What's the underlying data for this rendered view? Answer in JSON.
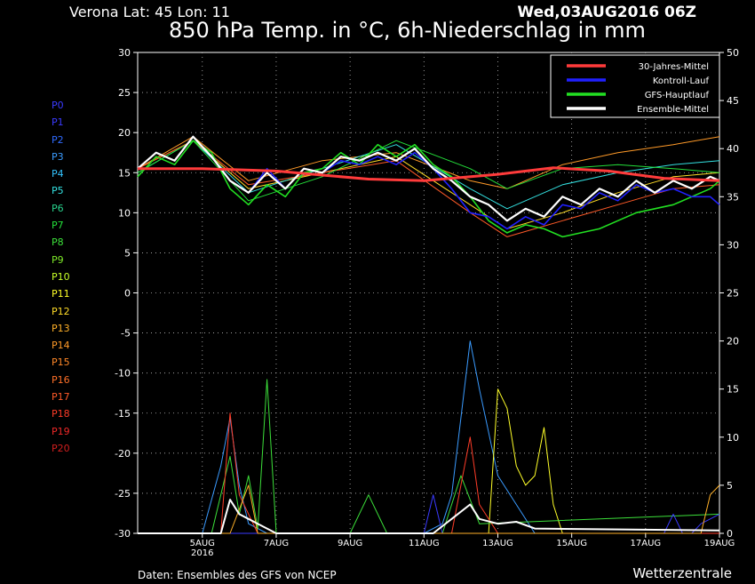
{
  "header": {
    "station": "Verona   Lat: 45 Lon: 11",
    "run": "Wed,03AUG2016 06Z",
    "title": "850 hPa Temp. in °C, 6h-Niederschlag in mm"
  },
  "footer": {
    "source": "Daten: Ensembles des GFS von NCEP",
    "brand": "Wetterzentrale"
  },
  "members": [
    {
      "label": "P0",
      "color": "#3a3aff"
    },
    {
      "label": "P1",
      "color": "#3a3aff"
    },
    {
      "label": "P2",
      "color": "#2f6bff"
    },
    {
      "label": "P3",
      "color": "#3a9bff"
    },
    {
      "label": "P4",
      "color": "#33c3ff"
    },
    {
      "label": "P5",
      "color": "#33e0e0"
    },
    {
      "label": "P6",
      "color": "#28d28c"
    },
    {
      "label": "P7",
      "color": "#24e03a"
    },
    {
      "label": "P8",
      "color": "#3ce03a"
    },
    {
      "label": "P9",
      "color": "#7ce828"
    },
    {
      "label": "P10",
      "color": "#c8ff28"
    },
    {
      "label": "P11",
      "color": "#ffff28"
    },
    {
      "label": "P12",
      "color": "#ffdc28"
    },
    {
      "label": "P13",
      "color": "#ffb028"
    },
    {
      "label": "P14",
      "color": "#ff9a28"
    },
    {
      "label": "P15",
      "color": "#ff8828"
    },
    {
      "label": "P16",
      "color": "#ff7028"
    },
    {
      "label": "P17",
      "color": "#ff5a28"
    },
    {
      "label": "P18",
      "color": "#ff3c28"
    },
    {
      "label": "P19",
      "color": "#f02828"
    },
    {
      "label": "P20",
      "color": "#d21e1e"
    }
  ],
  "chart_data": {
    "type": "line",
    "x_range": [
      "2016-08-03 06Z",
      "2016-08-19 00Z"
    ],
    "x_ticks": [
      {
        "label": "5AUG",
        "sub": "2016",
        "time": "2016-08-05 00Z"
      },
      {
        "label": "7AUG",
        "sub": "",
        "time": "2016-08-07 00Z"
      },
      {
        "label": "9AUG",
        "sub": "",
        "time": "2016-08-09 00Z"
      },
      {
        "label": "11AUG",
        "sub": "",
        "time": "2016-08-11 00Z"
      },
      {
        "label": "13AUG",
        "sub": "",
        "time": "2016-08-13 00Z"
      },
      {
        "label": "15AUG",
        "sub": "",
        "time": "2016-08-15 00Z"
      },
      {
        "label": "17AUG",
        "sub": "",
        "time": "2016-08-17 00Z"
      },
      {
        "label": "19AUG",
        "sub": "",
        "time": "2016-08-19 00Z"
      }
    ],
    "y_left": {
      "min": -30,
      "max": 30,
      "ticks": [
        30,
        25,
        20,
        15,
        10,
        5,
        0,
        -5,
        -10,
        -15,
        -20,
        -25,
        -30
      ]
    },
    "y_right": {
      "min": 0,
      "max": 50,
      "ticks": [
        50,
        45,
        40,
        35,
        30,
        25,
        20,
        15,
        10,
        5,
        0
      ]
    },
    "grid": true,
    "legend_position": "top-right",
    "legend": [
      {
        "label": "30-Jahres-Mittel",
        "color": "#ff3b3b"
      },
      {
        "label": "Kontroll-Lauf",
        "color": "#2020ff"
      },
      {
        "label": "GFS-Hauptlauf",
        "color": "#22e022"
      },
      {
        "label": "Ensemble-Mittel",
        "color": "#ffffff"
      }
    ],
    "temperature_series": [
      {
        "name": "30-Jahres-Mittel",
        "color": "#ff3b3b",
        "x": [
          "2016-08-03 06Z",
          "2016-08-05 00Z",
          "2016-08-07 00Z",
          "2016-08-08 06Z",
          "2016-08-09 12Z",
          "2016-08-11 00Z",
          "2016-08-13 00Z",
          "2016-08-14 12Z",
          "2016-08-16 00Z",
          "2016-08-17 12Z",
          "2016-08-19 00Z"
        ],
        "y": [
          15.5,
          15.5,
          15.2,
          14.7,
          14.2,
          14.0,
          14.8,
          15.6,
          15.2,
          14.3,
          14.0
        ]
      },
      {
        "name": "Ensemble-Mittel",
        "color": "#ffffff",
        "x": [
          "2016-08-03 06Z",
          "2016-08-03 18Z",
          "2016-08-04 06Z",
          "2016-08-04 18Z",
          "2016-08-05 06Z",
          "2016-08-05 18Z",
          "2016-08-06 06Z",
          "2016-08-06 18Z",
          "2016-08-07 06Z",
          "2016-08-07 18Z",
          "2016-08-08 06Z",
          "2016-08-08 18Z",
          "2016-08-09 06Z",
          "2016-08-09 18Z",
          "2016-08-10 06Z",
          "2016-08-10 18Z",
          "2016-08-11 06Z",
          "2016-08-11 18Z",
          "2016-08-12 06Z",
          "2016-08-12 18Z",
          "2016-08-13 06Z",
          "2016-08-13 18Z",
          "2016-08-14 06Z",
          "2016-08-14 18Z",
          "2016-08-15 06Z",
          "2016-08-15 18Z",
          "2016-08-16 06Z",
          "2016-08-16 18Z",
          "2016-08-17 06Z",
          "2016-08-17 18Z",
          "2016-08-18 06Z",
          "2016-08-18 18Z",
          "2016-08-19 00Z"
        ],
        "y": [
          15.5,
          17.5,
          16.5,
          19.5,
          17.0,
          14.0,
          12.5,
          15.0,
          13.0,
          15.5,
          15.0,
          17.0,
          16.5,
          17.5,
          16.5,
          18.0,
          15.5,
          14.0,
          12.0,
          11.0,
          9.0,
          10.5,
          9.5,
          12.0,
          11.0,
          13.0,
          12.0,
          14.0,
          12.5,
          14.0,
          13.0,
          14.5,
          14.0
        ]
      },
      {
        "name": "GFS-Hauptlauf",
        "color": "#22e022",
        "x": [
          "2016-08-03 06Z",
          "2016-08-03 18Z",
          "2016-08-04 06Z",
          "2016-08-04 18Z",
          "2016-08-05 06Z",
          "2016-08-05 18Z",
          "2016-08-06 06Z",
          "2016-08-06 18Z",
          "2016-08-07 06Z",
          "2016-08-07 18Z",
          "2016-08-08 06Z",
          "2016-08-08 18Z",
          "2016-08-09 06Z",
          "2016-08-09 18Z",
          "2016-08-10 06Z",
          "2016-08-10 18Z",
          "2016-08-11 06Z",
          "2016-08-11 18Z",
          "2016-08-12 06Z",
          "2016-08-12 18Z",
          "2016-08-13 06Z",
          "2016-08-13 18Z",
          "2016-08-14 06Z",
          "2016-08-14 18Z",
          "2016-08-15 06Z",
          "2016-08-15 18Z",
          "2016-08-16 06Z",
          "2016-08-16 18Z",
          "2016-08-17 06Z",
          "2016-08-17 18Z",
          "2016-08-18 06Z",
          "2016-08-18 18Z",
          "2016-08-19 00Z"
        ],
        "y": [
          14.5,
          17.0,
          16.0,
          19.0,
          17.5,
          13.0,
          11.0,
          13.5,
          12.0,
          15.0,
          15.5,
          17.5,
          16.0,
          18.5,
          17.0,
          18.5,
          16.0,
          14.5,
          12.0,
          9.0,
          7.5,
          8.5,
          8.0,
          7.0,
          7.5,
          8.0,
          9.0,
          10.0,
          10.5,
          11.0,
          12.0,
          13.0,
          14.0
        ]
      },
      {
        "name": "Kontroll-Lauf",
        "color": "#2020ff",
        "x": [
          "2016-08-03 06Z",
          "2016-08-03 18Z",
          "2016-08-04 06Z",
          "2016-08-04 18Z",
          "2016-08-05 06Z",
          "2016-08-05 18Z",
          "2016-08-06 06Z",
          "2016-08-06 18Z",
          "2016-08-07 06Z",
          "2016-08-07 18Z",
          "2016-08-08 06Z",
          "2016-08-08 18Z",
          "2016-08-09 06Z",
          "2016-08-09 18Z",
          "2016-08-10 06Z",
          "2016-08-10 18Z",
          "2016-08-11 06Z",
          "2016-08-11 18Z",
          "2016-08-12 06Z",
          "2016-08-12 18Z",
          "2016-08-13 06Z",
          "2016-08-13 18Z",
          "2016-08-14 06Z",
          "2016-08-14 18Z",
          "2016-08-15 06Z",
          "2016-08-15 18Z",
          "2016-08-16 06Z",
          "2016-08-16 18Z",
          "2016-08-17 06Z",
          "2016-08-17 18Z",
          "2016-08-18 06Z",
          "2016-08-18 18Z",
          "2016-08-19 00Z"
        ],
        "y": [
          15.5,
          17.5,
          16.5,
          19.5,
          17.0,
          14.0,
          12.5,
          15.5,
          13.0,
          15.5,
          15.0,
          16.5,
          16.0,
          17.0,
          16.0,
          17.5,
          15.5,
          13.0,
          10.0,
          9.5,
          8.0,
          9.5,
          8.5,
          11.0,
          10.5,
          12.5,
          11.5,
          13.5,
          12.5,
          13.0,
          12.0,
          12.0,
          11.0
        ]
      },
      {
        "name": "P14",
        "color": "#ff9a28",
        "x": [
          "2016-08-03 06Z",
          "2016-08-04 18Z",
          "2016-08-06 06Z",
          "2016-08-08 06Z",
          "2016-08-10 06Z",
          "2016-08-12 06Z",
          "2016-08-13 06Z",
          "2016-08-14 18Z",
          "2016-08-16 06Z",
          "2016-08-17 18Z",
          "2016-08-19 00Z"
        ],
        "y": [
          15.5,
          19.5,
          14.0,
          16.5,
          17.5,
          14.0,
          13.0,
          16.0,
          17.5,
          18.5,
          19.5
        ]
      },
      {
        "name": "P12",
        "color": "#ffdc28",
        "x": [
          "2016-08-03 06Z",
          "2016-08-04 18Z",
          "2016-08-06 06Z",
          "2016-08-08 06Z",
          "2016-08-10 06Z",
          "2016-08-12 06Z",
          "2016-08-13 06Z",
          "2016-08-14 18Z",
          "2016-08-16 06Z",
          "2016-08-17 18Z",
          "2016-08-19 00Z"
        ],
        "y": [
          15.5,
          19.0,
          13.0,
          15.0,
          17.0,
          11.0,
          8.0,
          10.0,
          12.5,
          14.5,
          15.0
        ]
      },
      {
        "name": "P5",
        "color": "#33e0e0",
        "x": [
          "2016-08-03 06Z",
          "2016-08-04 18Z",
          "2016-08-06 06Z",
          "2016-08-08 06Z",
          "2016-08-10 06Z",
          "2016-08-12 06Z",
          "2016-08-13 06Z",
          "2016-08-14 18Z",
          "2016-08-16 06Z",
          "2016-08-17 18Z",
          "2016-08-19 00Z"
        ],
        "y": [
          15.0,
          19.0,
          12.5,
          15.5,
          18.5,
          13.0,
          10.5,
          13.5,
          15.0,
          16.0,
          16.5
        ]
      },
      {
        "name": "P17",
        "color": "#ff5a28",
        "x": [
          "2016-08-03 06Z",
          "2016-08-04 18Z",
          "2016-08-06 06Z",
          "2016-08-08 06Z",
          "2016-08-10 06Z",
          "2016-08-12 06Z",
          "2016-08-13 06Z",
          "2016-08-14 18Z",
          "2016-08-16 06Z",
          "2016-08-17 18Z",
          "2016-08-19 00Z"
        ],
        "y": [
          15.5,
          19.0,
          13.5,
          15.0,
          16.5,
          10.0,
          7.0,
          9.0,
          11.0,
          13.0,
          13.5
        ]
      },
      {
        "name": "P7",
        "color": "#24e03a",
        "x": [
          "2016-08-03 06Z",
          "2016-08-04 18Z",
          "2016-08-06 06Z",
          "2016-08-08 06Z",
          "2016-08-10 06Z",
          "2016-08-12 06Z",
          "2016-08-13 06Z",
          "2016-08-14 18Z",
          "2016-08-16 06Z",
          "2016-08-17 18Z",
          "2016-08-19 00Z"
        ],
        "y": [
          15.0,
          19.0,
          11.5,
          14.5,
          19.0,
          15.5,
          13.0,
          15.5,
          16.0,
          15.5,
          15.0
        ]
      }
    ],
    "precipitation_series": [
      {
        "name": "P3",
        "color": "#3a9bff",
        "x": [
          "2016-08-03 06Z",
          "2016-08-05 00Z",
          "2016-08-05 12Z",
          "2016-08-05 18Z",
          "2016-08-06 00Z",
          "2016-08-06 06Z",
          "2016-08-06 18Z",
          "2016-08-11 00Z",
          "2016-08-11 12Z",
          "2016-08-11 18Z",
          "2016-08-12 00Z",
          "2016-08-12 06Z",
          "2016-08-12 12Z",
          "2016-08-13 00Z",
          "2016-08-14 00Z",
          "2016-08-19 00Z"
        ],
        "y": [
          0,
          0,
          7.0,
          12.0,
          5.0,
          1.0,
          0,
          0,
          1.0,
          4.0,
          12.0,
          20.0,
          15.0,
          6.0,
          0,
          0
        ]
      },
      {
        "name": "P11",
        "color": "#ffff28",
        "x": [
          "2016-08-03 06Z",
          "2016-08-12 18Z",
          "2016-08-13 00Z",
          "2016-08-13 06Z",
          "2016-08-13 12Z",
          "2016-08-13 18Z",
          "2016-08-14 00Z",
          "2016-08-14 06Z",
          "2016-08-14 12Z",
          "2016-08-14 18Z",
          "2016-08-19 00Z"
        ],
        "y": [
          0,
          0,
          15.0,
          13.0,
          7.0,
          5.0,
          6.0,
          11.0,
          3.0,
          0,
          0
        ]
      },
      {
        "name": "P8",
        "color": "#3ce03a",
        "x": [
          "2016-08-03 06Z",
          "2016-08-05 06Z",
          "2016-08-05 18Z",
          "2016-08-06 00Z",
          "2016-08-06 06Z",
          "2016-08-06 12Z",
          "2016-08-06 18Z",
          "2016-08-07 00Z",
          "2016-08-09 00Z",
          "2016-08-09 12Z",
          "2016-08-10 00Z",
          "2016-08-11 12Z",
          "2016-08-12 00Z",
          "2016-08-12 12Z",
          "2016-08-19 00Z"
        ],
        "y": [
          0,
          0,
          8.0,
          2.0,
          6.0,
          0.5,
          16.0,
          0,
          0,
          4.0,
          0,
          0,
          6.0,
          1.0,
          2.0
        ]
      },
      {
        "name": "P18",
        "color": "#ff3c28",
        "x": [
          "2016-08-03 06Z",
          "2016-08-05 12Z",
          "2016-08-05 18Z",
          "2016-08-06 00Z",
          "2016-08-06 12Z",
          "2016-08-11 18Z",
          "2016-08-12 06Z",
          "2016-08-12 12Z",
          "2016-08-13 00Z",
          "2016-08-19 00Z"
        ],
        "y": [
          0,
          0,
          12.5,
          4.0,
          0,
          0,
          10.0,
          3.0,
          0,
          0
        ]
      },
      {
        "name": "P0",
        "color": "#3a3aff",
        "x": [
          "2016-08-03 06Z",
          "2016-08-11 00Z",
          "2016-08-11 06Z",
          "2016-08-11 12Z",
          "2016-08-17 12Z",
          "2016-08-17 18Z",
          "2016-08-18 00Z",
          "2016-08-18 06Z",
          "2016-08-18 12Z",
          "2016-08-19 00Z"
        ],
        "y": [
          0,
          0,
          4.0,
          0,
          0,
          2.0,
          0,
          0,
          1.0,
          2.0
        ]
      },
      {
        "name": "P13",
        "color": "#ffb028",
        "x": [
          "2016-08-03 06Z",
          "2016-08-05 18Z",
          "2016-08-06 06Z",
          "2016-08-06 12Z",
          "2016-08-18 12Z",
          "2016-08-18 18Z",
          "2016-08-19 00Z"
        ],
        "y": [
          0,
          0,
          5.0,
          0,
          0,
          4.0,
          5.0
        ]
      },
      {
        "name": "Ensemble-Mittel",
        "color": "#ffffff",
        "x": [
          "2016-08-03 06Z",
          "2016-08-05 12Z",
          "2016-08-05 18Z",
          "2016-08-06 00Z",
          "2016-08-06 06Z",
          "2016-08-06 12Z",
          "2016-08-07 00Z",
          "2016-08-11 06Z",
          "2016-08-11 18Z",
          "2016-08-12 06Z",
          "2016-08-12 12Z",
          "2016-08-13 00Z",
          "2016-08-13 12Z",
          "2016-08-14 00Z",
          "2016-08-19 00Z"
        ],
        "y": [
          0,
          0,
          3.5,
          2.0,
          1.5,
          1.0,
          0,
          0,
          1.5,
          3.0,
          1.5,
          1.0,
          1.2,
          0.5,
          0.3
        ]
      }
    ]
  }
}
